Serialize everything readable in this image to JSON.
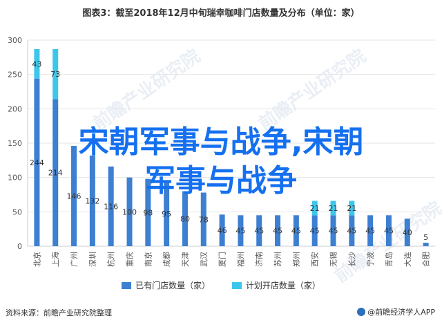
{
  "title": "图表3：截至2018年12月中旬瑞幸咖啡门店数量及分布（单位：家）",
  "headline": {
    "line1": "宋朝军事与战争,宋朝",
    "line2": "军事与战争"
  },
  "watermark": "前瞻产业研究院",
  "source": "资料来源：前瞻产业研究院整理",
  "brand": "@前瞻经济学人APP",
  "colors": {
    "existing": "#3d7fd1",
    "planned": "#3cc7ea",
    "axis": "#cccccc",
    "grid": "#e6e6e6",
    "text": "#555555"
  },
  "chart_data": {
    "type": "bar",
    "stacked": true,
    "ylim": [
      0,
      300
    ],
    "yticks": [
      0,
      50,
      100,
      150,
      200,
      250,
      300
    ],
    "grid": true,
    "legend_position": "bottom",
    "categories": [
      "北京",
      "上海",
      "广州",
      "深圳",
      "杭州",
      "重庆",
      "南京",
      "成都",
      "天津",
      "武汉",
      "厦门",
      "福州",
      "济南",
      "苏州",
      "郑州",
      "西安",
      "无锡",
      "长沙",
      "宁波",
      "青岛",
      "大连",
      "合肥"
    ],
    "series": [
      {
        "name": "已有门店数量（家）",
        "values": [
          244,
          214,
          146,
          132,
          116,
          100,
          98,
          95,
          80,
          78,
          46,
          45,
          45,
          45,
          45,
          45,
          45,
          45,
          45,
          45,
          40,
          5
        ],
        "labels": [
          "244",
          "214",
          "146",
          "132",
          "116",
          "100",
          "98",
          "95",
          "80",
          "78",
          "46",
          "45",
          "45",
          "45",
          "45",
          "45",
          "45",
          "45",
          "45",
          "45",
          "40",
          "5"
        ]
      },
      {
        "name": "计划开店数量（家）",
        "values": [
          43,
          73,
          0,
          0,
          0,
          0,
          0,
          0,
          0,
          0,
          0,
          0,
          0,
          0,
          0,
          21,
          21,
          21,
          0,
          0,
          0,
          0
        ],
        "labels": [
          "43",
          "73",
          "",
          "",
          "",
          "",
          "",
          "",
          "",
          "",
          "",
          "",
          "",
          "",
          "",
          "21",
          "21",
          "21",
          "",
          "",
          "",
          ""
        ]
      }
    ]
  }
}
